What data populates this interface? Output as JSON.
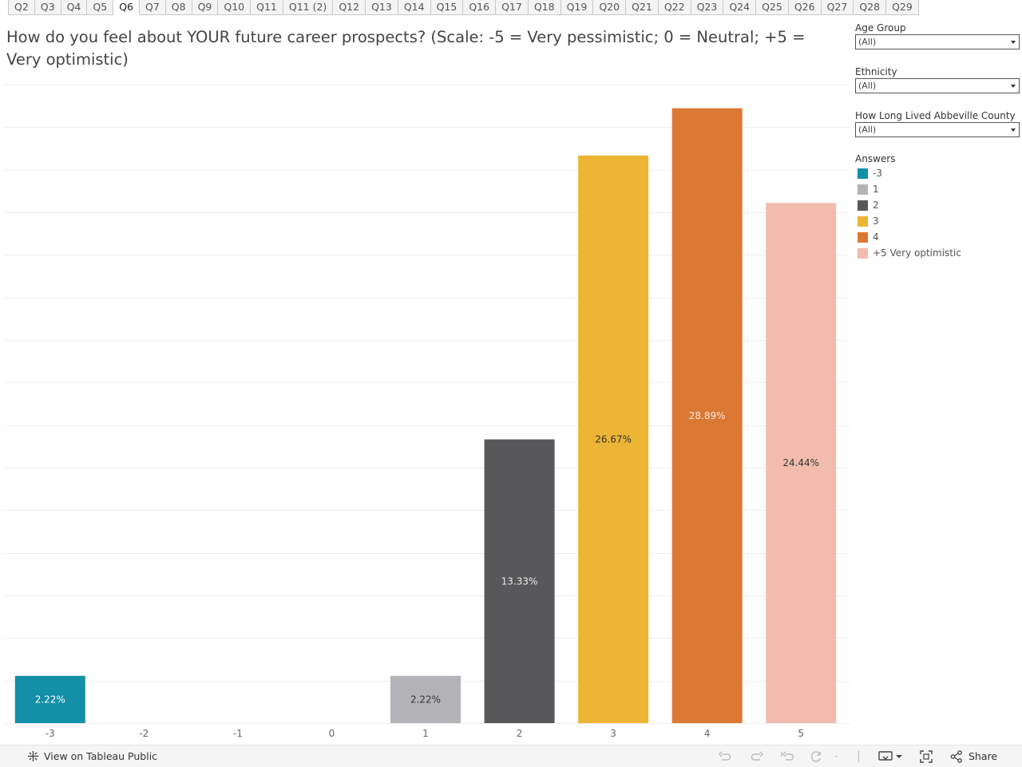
{
  "tabs": [
    "Q2",
    "Q3",
    "Q4",
    "Q5",
    "Q6",
    "Q7",
    "Q8",
    "Q9",
    "Q10",
    "Q11",
    "Q11 (2)",
    "Q12",
    "Q13",
    "Q14",
    "Q15",
    "Q16",
    "Q17",
    "Q18",
    "Q19",
    "Q20",
    "Q21",
    "Q22",
    "Q23",
    "Q24",
    "Q25",
    "Q26",
    "Q27",
    "Q28",
    "Q29"
  ],
  "active_tab": "Q6",
  "filters": [
    {
      "label": "Age Group",
      "value": "(All)"
    },
    {
      "label": "Ethnicity",
      "value": "(All)"
    },
    {
      "label": "How Long Lived Abbeville County",
      "value": "(All)"
    }
  ],
  "legend": {
    "title": "Answers",
    "items": [
      {
        "label": "-3",
        "color": "#138fa8"
      },
      {
        "label": "1",
        "color": "#b4b4b8"
      },
      {
        "label": "2",
        "color": "#58585a"
      },
      {
        "label": "3",
        "color": "#ecb535"
      },
      {
        "label": "4",
        "color": "#db7934"
      },
      {
        "label": "+5 Very optimistic",
        "color": "#f1bcae"
      }
    ]
  },
  "footer": {
    "view_label": "View on Tableau Public",
    "share_label": "Share"
  },
  "chart_data": {
    "type": "bar",
    "title": "How do you feel about YOUR future career prospects? (Scale: -5 = Very pessimistic; 0 = Neutral; +5 = Very optimistic)",
    "xlabel": "",
    "ylabel": "",
    "categories": [
      "-3",
      "-2",
      "-1",
      "0",
      "1",
      "2",
      "3",
      "4",
      "5"
    ],
    "values": [
      2.22,
      null,
      null,
      null,
      2.22,
      13.33,
      26.67,
      28.89,
      24.44
    ],
    "data_labels": [
      "2.22%",
      "",
      "",
      "",
      "2.22%",
      "13.33%",
      "26.67%",
      "28.89%",
      "24.44%"
    ],
    "colors": [
      "#138fa8",
      null,
      null,
      null,
      "#b4b4b8",
      "#58585a",
      "#ecb535",
      "#db7934",
      "#f1bcae"
    ],
    "label_colors": [
      "#ffffff",
      null,
      null,
      null,
      "#333333",
      "#e8e8e8",
      "#333333",
      "#f5e6da",
      "#333333"
    ],
    "ylim": [
      0,
      30
    ],
    "grid": true,
    "legend_position": "right"
  }
}
